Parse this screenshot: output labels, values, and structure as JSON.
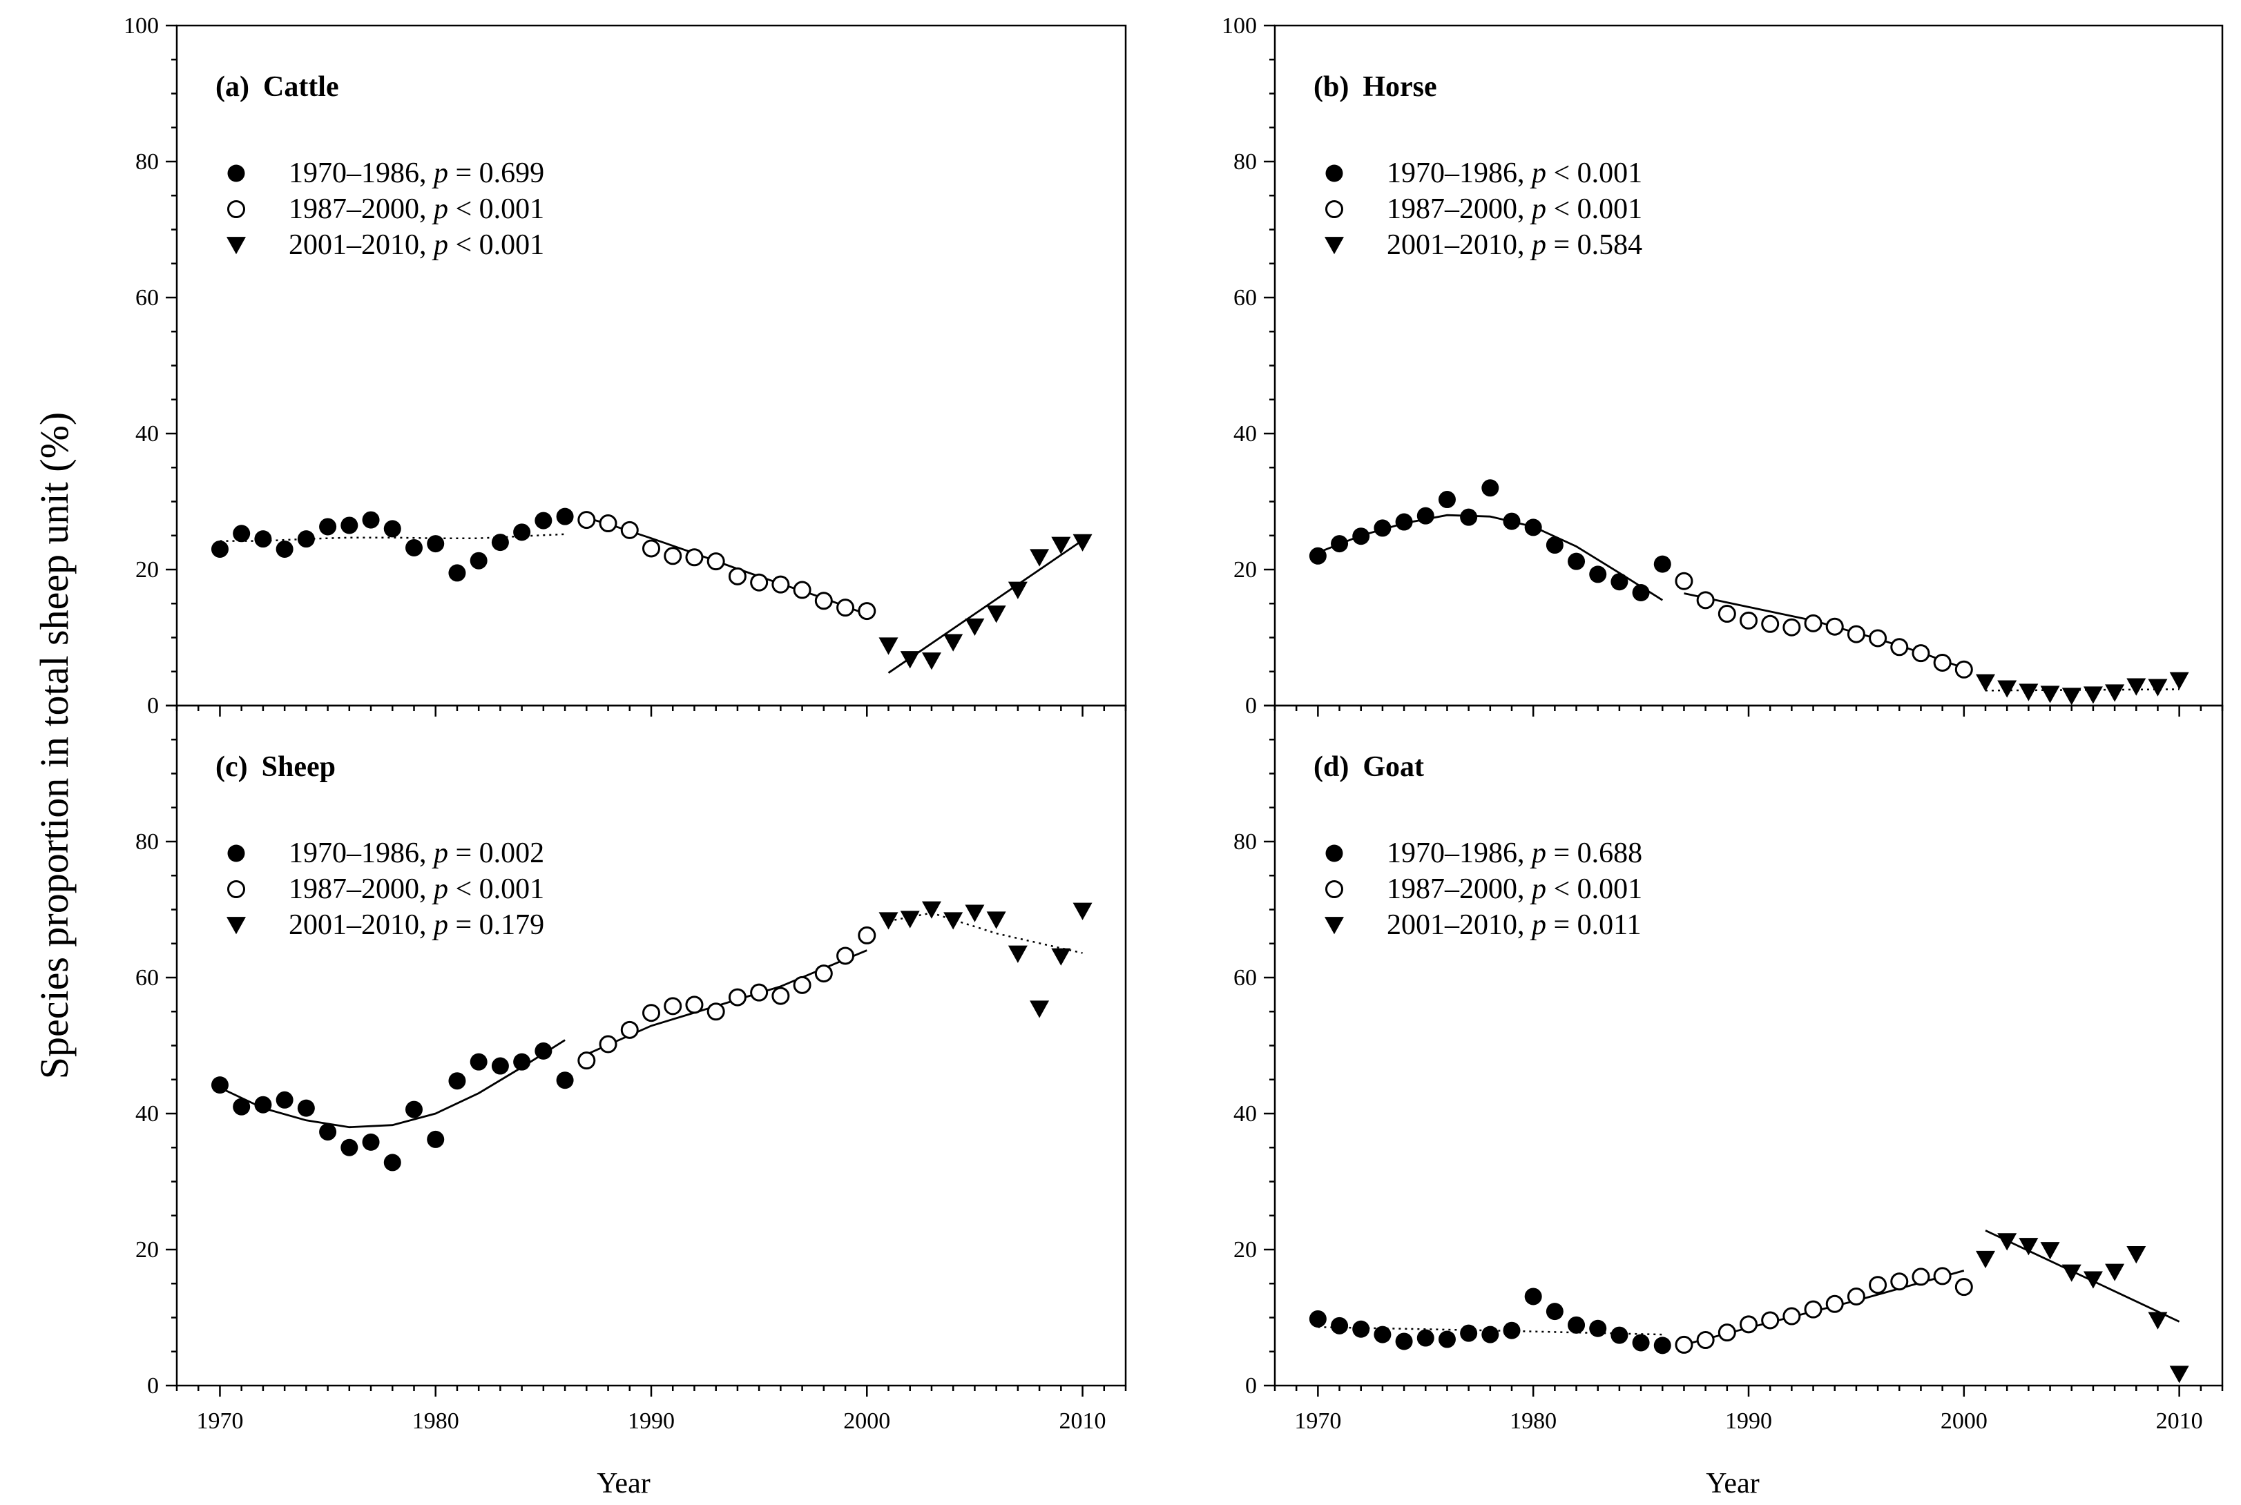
{
  "figure": {
    "y_axis_label": "Species proportion in total sheep unit (%)",
    "x_axis_label": "Year"
  },
  "chart_data": [
    {
      "type": "scatter",
      "panel": "a",
      "title_prefix": "(a)",
      "title": "Cattle",
      "xlim": [
        1968,
        2012
      ],
      "ylim": [
        0,
        100
      ],
      "x_ticks": [
        1970,
        1980,
        1990,
        2000,
        2010
      ],
      "y_ticks": [
        0,
        20,
        40,
        60,
        80,
        100
      ],
      "legend": [
        {
          "period": "1970–1986, ",
          "p_label": "p",
          "p_value": " = 0.699",
          "marker": "filled-circle"
        },
        {
          "period": "1987–2000, ",
          "p_label": "p",
          "p_value": " < 0.001",
          "marker": "open-circle"
        },
        {
          "period": "2001–2010, ",
          "p_label": "p",
          "p_value": " < 0.001",
          "marker": "filled-triangle"
        }
      ],
      "series": [
        {
          "name": "1970–1986",
          "marker": "filled-circle",
          "x": [
            1970,
            1971,
            1972,
            1973,
            1974,
            1975,
            1976,
            1977,
            1978,
            1979,
            1980,
            1981,
            1982,
            1983,
            1984,
            1985,
            1986
          ],
          "y": [
            23,
            25.3,
            24.5,
            23,
            24.5,
            26.3,
            26.5,
            27.3,
            26,
            23.2,
            23.8,
            19.5,
            21.3,
            24,
            25.5,
            27.2,
            27.8
          ]
        },
        {
          "name": "1987–2000",
          "marker": "open-circle",
          "x": [
            1987,
            1988,
            1989,
            1990,
            1991,
            1992,
            1993,
            1994,
            1995,
            1996,
            1997,
            1998,
            1999,
            2000
          ],
          "y": [
            27.3,
            26.8,
            25.8,
            23.1,
            22,
            21.8,
            21.2,
            19,
            18.1,
            17.8,
            17,
            15.4,
            14.4,
            13.9
          ]
        },
        {
          "name": "2001–2010",
          "marker": "filled-triangle",
          "x": [
            2001,
            2002,
            2003,
            2004,
            2005,
            2006,
            2007,
            2008,
            2009,
            2010
          ],
          "y": [
            8.8,
            6.8,
            6.6,
            9.3,
            11.6,
            13.5,
            17,
            21.8,
            23.6,
            24
          ]
        }
      ],
      "fits": [
        {
          "style": "dotted",
          "x": [
            1970,
            1972,
            1974,
            1976,
            1978,
            1980,
            1982,
            1984,
            1986
          ],
          "y": [
            24.2,
            24.2,
            24.5,
            24.7,
            24.7,
            24.6,
            24.6,
            24.9,
            25.2
          ]
        },
        {
          "style": "solid",
          "x": [
            1987,
            1988,
            1990,
            1992,
            1994,
            1996,
            1998,
            2000
          ],
          "y": [
            27.6,
            26.7,
            24.6,
            22.4,
            20.1,
            17.9,
            15.8,
            13.4
          ]
        },
        {
          "style": "solid",
          "x": [
            2001,
            2010
          ],
          "y": [
            4.8,
            24.3
          ]
        }
      ]
    },
    {
      "type": "scatter",
      "panel": "b",
      "title_prefix": "(b)",
      "title": "Horse",
      "xlim": [
        1968,
        2012
      ],
      "ylim": [
        0,
        100
      ],
      "x_ticks": [
        1970,
        1980,
        1990,
        2000,
        2010
      ],
      "y_ticks": [
        0,
        20,
        40,
        60,
        80,
        100
      ],
      "legend": [
        {
          "period": "1970–1986, ",
          "p_label": "p",
          "p_value": " < 0.001",
          "marker": "filled-circle"
        },
        {
          "period": "1987–2000, ",
          "p_label": "p",
          "p_value": " < 0.001",
          "marker": "open-circle"
        },
        {
          "period": "2001–2010, ",
          "p_label": "p",
          "p_value": " = 0.584",
          "marker": "filled-triangle"
        }
      ],
      "series": [
        {
          "name": "1970–1986",
          "marker": "filled-circle",
          "x": [
            1970,
            1971,
            1972,
            1973,
            1974,
            1975,
            1976,
            1977,
            1978,
            1979,
            1980,
            1981,
            1982,
            1983,
            1984,
            1985,
            1986
          ],
          "y": [
            22,
            23.8,
            24.9,
            26.1,
            27,
            27.9,
            30.3,
            27.7,
            32,
            27.1,
            26.2,
            23.6,
            21.2,
            19.3,
            18.2,
            16.6,
            20.8
          ]
        },
        {
          "name": "1987–2000",
          "marker": "open-circle",
          "x": [
            1987,
            1988,
            1989,
            1990,
            1991,
            1992,
            1993,
            1994,
            1995,
            1996,
            1997,
            1998,
            1999,
            2000
          ],
          "y": [
            18.3,
            15.5,
            13.5,
            12.5,
            12,
            11.5,
            12.1,
            11.6,
            10.5,
            9.9,
            8.6,
            7.7,
            6.3,
            5.3
          ]
        },
        {
          "name": "2001–2010",
          "marker": "filled-triangle",
          "x": [
            2001,
            2002,
            2003,
            2004,
            2005,
            2006,
            2007,
            2008,
            2009,
            2010
          ],
          "y": [
            3.4,
            2.5,
            2,
            1.7,
            1.4,
            1.6,
            1.9,
            2.8,
            2.7,
            3.7
          ]
        }
      ],
      "fits": [
        {
          "style": "solid",
          "x": [
            1970,
            1972,
            1974,
            1976,
            1978,
            1980,
            1982,
            1984,
            1986
          ],
          "y": [
            22.5,
            25,
            26.8,
            28,
            27.8,
            26.3,
            23.4,
            19.5,
            15.5
          ]
        },
        {
          "style": "solid",
          "x": [
            1987,
            1990,
            1993,
            1996,
            1998,
            2000
          ],
          "y": [
            16.5,
            14.5,
            12.5,
            9.8,
            7.8,
            5.5
          ]
        },
        {
          "style": "dotted",
          "x": [
            2001,
            2010
          ],
          "y": [
            2.2,
            2.4
          ]
        }
      ]
    },
    {
      "type": "scatter",
      "panel": "c",
      "title_prefix": "(c)",
      "title": "Sheep",
      "xlim": [
        1968,
        2012
      ],
      "ylim": [
        0,
        100
      ],
      "x_ticks": [
        1970,
        1980,
        1990,
        2000,
        2010
      ],
      "y_ticks": [
        0,
        20,
        40,
        60,
        80
      ],
      "legend": [
        {
          "period": "1970–1986, ",
          "p_label": "p",
          "p_value": " = 0.002",
          "marker": "filled-circle"
        },
        {
          "period": "1987–2000, ",
          "p_label": "p",
          "p_value": " < 0.001",
          "marker": "open-circle"
        },
        {
          "period": "2001–2010, ",
          "p_label": "p",
          "p_value": " = 0.179",
          "marker": "filled-triangle"
        }
      ],
      "series": [
        {
          "name": "1970–1986",
          "marker": "filled-circle",
          "x": [
            1970,
            1971,
            1972,
            1973,
            1974,
            1975,
            1976,
            1977,
            1978,
            1979,
            1980,
            1981,
            1982,
            1983,
            1984,
            1985,
            1986
          ],
          "y": [
            44.2,
            41,
            41.3,
            42,
            40.8,
            37.3,
            35,
            35.8,
            32.8,
            40.6,
            36.2,
            44.8,
            47.6,
            47,
            47.6,
            49.2,
            44.9
          ]
        },
        {
          "name": "1987–2000",
          "marker": "open-circle",
          "x": [
            1987,
            1988,
            1989,
            1990,
            1991,
            1992,
            1993,
            1994,
            1995,
            1996,
            1997,
            1998,
            1999,
            2000
          ],
          "y": [
            47.8,
            50.2,
            52.3,
            54.8,
            55.8,
            56,
            55,
            57.1,
            57.8,
            57.3,
            58.9,
            60.6,
            63.2,
            66.2
          ]
        },
        {
          "name": "2001–2010",
          "marker": "filled-triangle",
          "x": [
            2001,
            2002,
            2003,
            2004,
            2005,
            2006,
            2007,
            2008,
            2009,
            2010
          ],
          "y": [
            68.4,
            68.6,
            70,
            68.4,
            69.5,
            68.5,
            63.5,
            55.4,
            63.1,
            69.8
          ]
        }
      ],
      "fits": [
        {
          "style": "solid",
          "x": [
            1970,
            1972,
            1974,
            1976,
            1978,
            1980,
            1982,
            1984,
            1986
          ],
          "y": [
            43.8,
            40.8,
            39,
            38,
            38.3,
            40,
            43,
            46.8,
            50.8
          ]
        },
        {
          "style": "solid",
          "x": [
            1987,
            1990,
            1993,
            1996,
            2000
          ],
          "y": [
            48.7,
            52.9,
            55.8,
            58.7,
            64
          ]
        },
        {
          "style": "dotted",
          "x": [
            2001,
            2003,
            2006,
            2010
          ],
          "y": [
            68.3,
            69.5,
            66.5,
            63.6
          ]
        }
      ]
    },
    {
      "type": "scatter",
      "panel": "d",
      "title_prefix": "(d)",
      "title": "Goat",
      "xlim": [
        1968,
        2012
      ],
      "ylim": [
        0,
        100
      ],
      "x_ticks": [
        1970,
        1980,
        1990,
        2000,
        2010
      ],
      "y_ticks": [
        0,
        20,
        40,
        60,
        80
      ],
      "legend": [
        {
          "period": "1970–1986, ",
          "p_label": "p",
          "p_value": " = 0.688",
          "marker": "filled-circle"
        },
        {
          "period": "1987–2000, ",
          "p_label": "p",
          "p_value": " < 0.001",
          "marker": "open-circle"
        },
        {
          "period": "2001–2010, ",
          "p_label": "p",
          "p_value": " = 0.011",
          "marker": "filled-triangle"
        }
      ],
      "series": [
        {
          "name": "1970–1986",
          "marker": "filled-circle",
          "x": [
            1970,
            1971,
            1972,
            1973,
            1974,
            1975,
            1976,
            1977,
            1978,
            1979,
            1980,
            1981,
            1982,
            1983,
            1984,
            1985,
            1986
          ],
          "y": [
            9.8,
            8.8,
            8.3,
            7.5,
            6.5,
            7,
            6.8,
            7.7,
            7.5,
            8.1,
            13.1,
            10.9,
            8.9,
            8.4,
            7.4,
            6.3,
            5.9
          ]
        },
        {
          "name": "1987–2000",
          "marker": "open-circle",
          "x": [
            1987,
            1988,
            1989,
            1990,
            1991,
            1992,
            1993,
            1994,
            1995,
            1996,
            1997,
            1998,
            1999,
            2000
          ],
          "y": [
            6,
            6.7,
            7.8,
            9,
            9.6,
            10.2,
            11.2,
            12,
            13.1,
            14.8,
            15.3,
            16,
            16.1,
            14.5
          ]
        },
        {
          "name": "2001–2010",
          "marker": "filled-triangle",
          "x": [
            2001,
            2002,
            2003,
            2004,
            2005,
            2006,
            2007,
            2008,
            2009,
            2010
          ],
          "y": [
            18.6,
            21.2,
            20.5,
            19.9,
            16.6,
            15.6,
            16.7,
            19.3,
            9.6,
            1.7
          ]
        }
      ],
      "fits": [
        {
          "style": "dotted",
          "x": [
            1970,
            1978,
            1986
          ],
          "y": [
            8.6,
            8.1,
            7.5
          ]
        },
        {
          "style": "solid",
          "x": [
            1987,
            1990,
            1995,
            2000
          ],
          "y": [
            6,
            8.5,
            12.5,
            16.9
          ]
        },
        {
          "style": "solid",
          "x": [
            2001,
            2010
          ],
          "y": [
            22.8,
            9.4
          ]
        }
      ]
    }
  ]
}
